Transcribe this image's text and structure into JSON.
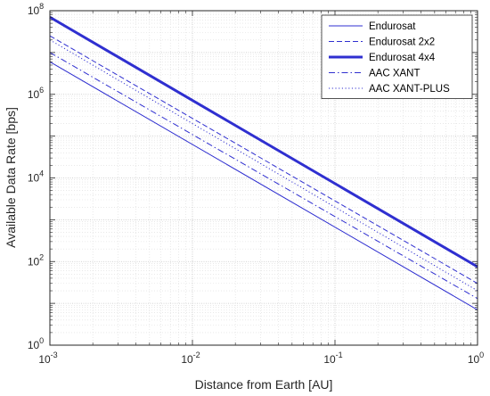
{
  "chart_data": {
    "type": "line",
    "xlabel": "Distance from Earth [AU]",
    "ylabel": "Available Data Rate [bps]",
    "xscale": "log",
    "yscale": "log",
    "xlim": [
      0.001,
      1
    ],
    "ylim": [
      1,
      100000000
    ],
    "grid": true,
    "minor_grid": true,
    "legend_position": "top-right",
    "line_color": "#2f2fd0",
    "x_ticks": [
      {
        "base": "10",
        "exp": "-3",
        "value": 0.001
      },
      {
        "base": "10",
        "exp": "-2",
        "value": 0.01
      },
      {
        "base": "10",
        "exp": "-1",
        "value": 0.1
      },
      {
        "base": "10",
        "exp": "0",
        "value": 1
      }
    ],
    "y_ticks": [
      {
        "base": "10",
        "exp": "0",
        "value": 1
      },
      {
        "base": "10",
        "exp": "2",
        "value": 100
      },
      {
        "base": "10",
        "exp": "4",
        "value": 10000
      },
      {
        "base": "10",
        "exp": "6",
        "value": 1000000
      },
      {
        "base": "10",
        "exp": "8",
        "value": 100000000
      }
    ],
    "series": [
      {
        "name": "Endurosat",
        "style": "solid",
        "width": 1,
        "x": [
          0.001,
          1
        ],
        "y": [
          6000000,
          7
        ]
      },
      {
        "name": "Endurosat 2x2",
        "style": "dashed",
        "width": 1,
        "x": [
          0.001,
          1
        ],
        "y": [
          25000000,
          30
        ]
      },
      {
        "name": "Endurosat 4x4",
        "style": "solid",
        "width": 3,
        "x": [
          0.001,
          1
        ],
        "y": [
          70000000,
          75
        ]
      },
      {
        "name": "AAC XANT",
        "style": "dashdot",
        "width": 1,
        "x": [
          0.001,
          1
        ],
        "y": [
          10000000,
          13
        ]
      },
      {
        "name": "AAC XANT-PLUS",
        "style": "dotted",
        "width": 1,
        "x": [
          0.001,
          1
        ],
        "y": [
          20000000,
          20
        ]
      }
    ]
  }
}
